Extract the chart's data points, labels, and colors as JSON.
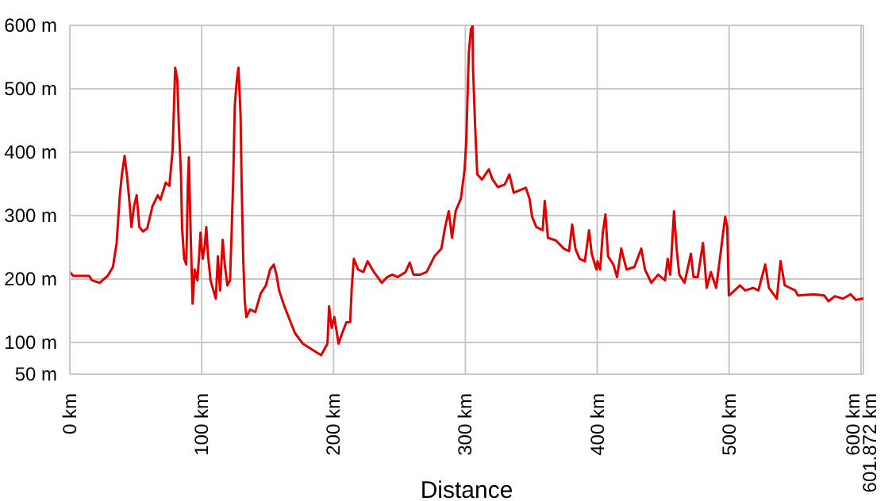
{
  "chart_data": {
    "type": "line",
    "xlabel": "Distance",
    "x": [
      0,
      2.6,
      14.7,
      16.7,
      22.7,
      24.7,
      28.7,
      32.7,
      35.5,
      37.9,
      39.5,
      41.5,
      43.5,
      45.5,
      46.7,
      48.7,
      50.7,
      52.7,
      55.5,
      58.7,
      62.7,
      66.7,
      68.7,
      72.7,
      75.5,
      77.9,
      78.7,
      79.9,
      81.5,
      82.7,
      84.3,
      85.1,
      86.7,
      88.3,
      89.5,
      90.3,
      91.5,
      93.1,
      94.7,
      96.7,
      97.9,
      99.1,
      100.7,
      102.3,
      103.5,
      104.7,
      106.7,
      110.7,
      112.3,
      113.9,
      115.9,
      117.5,
      119.5,
      121.5,
      122.7,
      123.9,
      125.1,
      126.7,
      127.9,
      129.5,
      130.3,
      131.5,
      132.7,
      133.9,
      136.7,
      140.7,
      144.7,
      148.7,
      151.9,
      154.7,
      156.7,
      158.7,
      162.7,
      166.7,
      170.7,
      176.7,
      185.9,
      190.6,
      195.4,
      196.6,
      198.6,
      200.6,
      203.8,
      206.6,
      209.8,
      212.6,
      213.8,
      215.4,
      218.6,
      222.6,
      225.8,
      230.6,
      236.6,
      240.6,
      244.6,
      248.6,
      254.6,
      257.8,
      260.6,
      265.8,
      270.6,
      276.6,
      281.8,
      284.6,
      287.4,
      289.8,
      292.6,
      296.6,
      299.4,
      300.6,
      302.6,
      304.2,
      305.4,
      305.8,
      307.4,
      309,
      312.6,
      317.8,
      320.6,
      324.6,
      329.8,
      333.4,
      336.6,
      345.8,
      348.6,
      350.6,
      353.8,
      358.6,
      360.2,
      362.6,
      368.6,
      374.6,
      378.6,
      381,
      383.4,
      386.6,
      390.6,
      393.8,
      395.8,
      399.4,
      400.2,
      402.2,
      404.2,
      406.2,
      408.2,
      412.2,
      415,
      418.2,
      422.2,
      428.2,
      433.4,
      436.2,
      441,
      446.2,
      451.4,
      453.4,
      455.4,
      458.2,
      460.2,
      462.2,
      466.2,
      471,
      473,
      476.2,
      480.2,
      483,
      486.2,
      490.2,
      495,
      497,
      498.6,
      499.8,
      504.2,
      508.2,
      512.2,
      518.2,
      522.2,
      527.4,
      530.2,
      536.2,
      539,
      542.2,
      550.2,
      552.2,
      564.2,
      572.2,
      575.4,
      580.2,
      586.2,
      592.2,
      596.2,
      601,
      601.872
    ],
    "series": [
      {
        "color": "#e00000",
        "values": [
          211,
          205,
          205,
          198,
          194,
          198,
          205,
          219,
          257,
          332,
          365,
          394,
          360,
          315,
          282,
          315,
          332,
          282,
          275,
          280,
          315,
          332,
          325,
          352,
          347,
          402,
          452,
          533,
          515,
          440,
          365,
          282,
          232,
          223,
          350,
          392,
          282,
          161,
          215,
          198,
          232,
          273,
          232,
          252,
          282,
          240,
          198,
          169,
          236,
          182,
          262,
          223,
          190,
          198,
          273,
          357,
          473,
          515,
          533,
          457,
          350,
          232,
          165,
          140,
          152,
          148,
          177,
          190,
          215,
          223,
          207,
          182,
          157,
          136,
          115,
          98,
          86,
          80,
          98,
          157,
          123,
          140,
          98,
          115,
          132,
          132,
          186,
          232,
          215,
          211,
          228,
          211,
          194,
          203,
          207,
          203,
          211,
          226,
          207,
          207,
          211,
          236,
          248,
          282,
          307,
          265,
          307,
          327,
          373,
          415,
          557,
          594,
          599,
          532,
          440,
          365,
          357,
          373,
          357,
          345,
          349,
          365,
          336,
          344,
          327,
          298,
          282,
          277,
          323,
          265,
          261,
          248,
          244,
          286,
          248,
          232,
          228,
          277,
          240,
          215,
          228,
          215,
          273,
          302,
          236,
          223,
          203,
          248,
          215,
          219,
          248,
          215,
          194,
          207,
          198,
          232,
          207,
          307,
          248,
          207,
          194,
          240,
          203,
          203,
          257,
          186,
          211,
          186,
          265,
          298,
          282,
          174,
          182,
          190,
          182,
          186,
          182,
          223,
          186,
          169,
          228,
          190,
          182,
          174,
          176,
          174,
          165,
          173,
          169,
          176,
          167,
          169,
          169
        ]
      }
    ],
    "xlim": [
      0,
      601.872
    ],
    "xticks": [
      {
        "value": 0,
        "label": "0 km"
      },
      {
        "value": 100,
        "label": "100 km"
      },
      {
        "value": 200,
        "label": "200 km"
      },
      {
        "value": 300,
        "label": "300 km"
      },
      {
        "value": 400,
        "label": "400 km"
      },
      {
        "value": 500,
        "label": "500 km"
      },
      {
        "value": 600,
        "label": "600 km"
      },
      {
        "value": 601.872,
        "label": "601.872 km"
      }
    ],
    "ylim": [
      50,
      600
    ],
    "yticks": [
      {
        "value": 50,
        "label": "50 m"
      },
      {
        "value": 100,
        "label": "100 m"
      },
      {
        "value": 200,
        "label": "200 m"
      },
      {
        "value": 300,
        "label": "300 m"
      },
      {
        "value": 400,
        "label": "400 m"
      },
      {
        "value": 500,
        "label": "500 m"
      },
      {
        "value": 600,
        "label": "600 m"
      }
    ],
    "grid": true,
    "marker": "none",
    "line_style": "solid"
  }
}
